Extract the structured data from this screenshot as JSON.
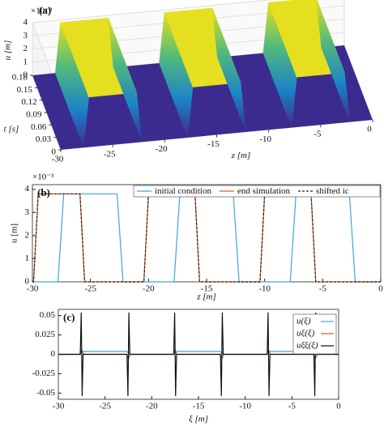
{
  "chart_data": [
    {
      "type": "surface3d",
      "panel": "(a)",
      "xlabel": "z [m]",
      "ylabel": "t [s]",
      "zlabel": "u [m]",
      "zscale_label": "×10⁻³",
      "x": [
        -30,
        -27.8,
        -27.3,
        -22.7,
        -22.2,
        -17.8,
        -17.3,
        -12.7,
        -12.2,
        -7.8,
        -7.3,
        -2.7,
        -2.2,
        0
      ],
      "values": [
        0,
        0,
        3.8,
        3.8,
        0,
        0,
        3.8,
        3.8,
        0,
        0,
        3.8,
        3.8,
        0,
        0
      ],
      "xlim": [
        -30,
        0
      ],
      "xticks": [
        -30,
        -25,
        -20,
        -15,
        -10,
        -5,
        0
      ],
      "ylim": [
        0,
        0.18
      ],
      "yticks": [
        0,
        0.03,
        0.06,
        0.09,
        0.12,
        0.15,
        0.18
      ],
      "zlim": [
        0,
        4
      ],
      "zticks": [
        0,
        1,
        2,
        3,
        4
      ],
      "top_color": "#e6df1f",
      "floor_color": "#3b2b8e"
    },
    {
      "type": "line",
      "panel": "(b)",
      "xlabel": "z [m]",
      "ylabel": "u [m]",
      "yscale_label": "×10⁻³",
      "legend": "top",
      "xlim": [
        -30,
        0
      ],
      "xticks": [
        -30,
        -25,
        -20,
        -15,
        -10,
        -5,
        0
      ],
      "ylim": [
        0,
        4.2
      ],
      "yticks": [
        0,
        1,
        2,
        3,
        4
      ],
      "series": [
        {
          "name": "initial condition",
          "color": "#3fa6dc",
          "linestyle": "solid",
          "x": [
            -30,
            -27.8,
            -27.3,
            -22.7,
            -22.2,
            -17.8,
            -17.3,
            -12.7,
            -12.2,
            -7.8,
            -7.3,
            -2.7,
            -2.2,
            0
          ],
          "values": [
            0,
            0,
            3.8,
            3.8,
            0,
            0,
            3.8,
            3.8,
            0,
            0,
            3.8,
            3.8,
            0,
            0
          ]
        },
        {
          "name": "end simulation",
          "color": "#d9601e",
          "linestyle": "solid",
          "x": [
            -30,
            -29.9,
            -29.5,
            -25.9,
            -25.5,
            -20.4,
            -20,
            -16,
            -15.6,
            -10.4,
            -10,
            -6,
            -5.6,
            0
          ],
          "values": [
            0,
            0,
            3.8,
            3.8,
            0,
            0,
            3.8,
            3.8,
            0,
            0,
            3.8,
            3.8,
            0,
            0
          ]
        },
        {
          "name": "shifted ic",
          "color": "#222222",
          "linestyle": "dashed",
          "x": [
            -30,
            -29.9,
            -29.5,
            -25.9,
            -25.5,
            -20.4,
            -20,
            -16,
            -15.6,
            -10.4,
            -10,
            -6,
            -5.6,
            0
          ],
          "values": [
            0,
            0,
            3.8,
            3.8,
            0,
            0,
            3.8,
            3.8,
            0,
            0,
            3.8,
            3.8,
            0,
            0
          ]
        }
      ]
    },
    {
      "type": "line",
      "panel": "(c)",
      "xlabel": "ξ [m]",
      "legend": "upper right",
      "xlim": [
        -30,
        0
      ],
      "xticks": [
        -30,
        -25,
        -20,
        -15,
        -10,
        -5,
        0
      ],
      "ylim": [
        -0.058,
        0.058
      ],
      "yticks": [
        -0.05,
        -0.025,
        0,
        0.025,
        0.05
      ],
      "series": [
        {
          "name": "u(ξ)",
          "color": "#3fa6dc",
          "linestyle": "solid",
          "x": [
            -30,
            -27.7,
            -27.3,
            -22.7,
            -22.3,
            -17.7,
            -17.3,
            -12.7,
            -12.3,
            -7.7,
            -7.3,
            -2.7,
            -2.3,
            0
          ],
          "values": [
            0,
            0,
            0.0038,
            0.0038,
            0,
            0,
            0.0038,
            0.0038,
            0,
            0,
            0.0038,
            0.0038,
            0,
            0
          ]
        },
        {
          "name": "uξ(ξ)",
          "color": "#d9601e",
          "linestyle": "solid",
          "x": [
            -30,
            -27.7,
            -27.5,
            -27.3,
            -22.7,
            -22.5,
            -22.3,
            -17.7,
            -17.5,
            -17.3,
            -12.7,
            -12.5,
            -12.3,
            -7.7,
            -7.5,
            -7.3,
            -2.7,
            -2.5,
            -2.3,
            0
          ],
          "values": [
            0,
            0,
            0.006,
            0,
            0,
            -0.006,
            0,
            0,
            0.006,
            0,
            0,
            -0.006,
            0,
            0,
            0.006,
            0,
            0,
            -0.006,
            0,
            0
          ]
        },
        {
          "name": "uξξ(ξ)",
          "color": "#111111",
          "linestyle": "solid",
          "x": [
            -30,
            -27.65,
            -27.55,
            -27.5,
            -27.45,
            -27.35,
            -22.65,
            -22.55,
            -22.5,
            -22.45,
            -22.35,
            -17.65,
            -17.55,
            -17.5,
            -17.45,
            -17.35,
            -12.65,
            -12.55,
            -12.5,
            -12.45,
            -12.35,
            -7.65,
            -7.55,
            -7.5,
            -7.45,
            -7.35,
            -2.65,
            -2.55,
            -2.5,
            -2.45,
            -2.35,
            0
          ],
          "values": [
            0,
            0,
            0.054,
            0,
            -0.054,
            0,
            0,
            -0.054,
            0,
            0.054,
            0,
            0,
            0.054,
            0,
            -0.054,
            0,
            0,
            -0.054,
            0,
            0.054,
            0,
            0,
            0.054,
            0,
            -0.054,
            0,
            0,
            -0.054,
            0,
            0.054,
            0,
            0
          ]
        }
      ]
    }
  ]
}
